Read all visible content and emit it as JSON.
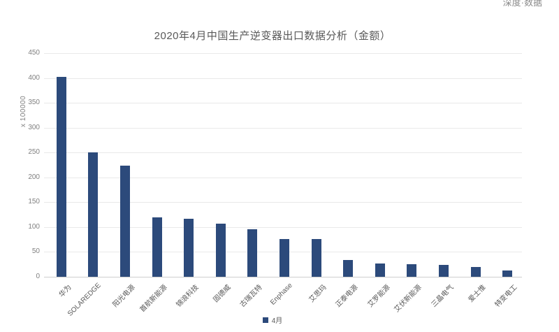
{
  "watermark": {
    "text": "深度·数据"
  },
  "colors": {
    "bar": "#2C4A7B",
    "gridline": "#E9E9E9",
    "axis_line": "#CFCFCF",
    "title_text": "#595959",
    "tick_text": "#7F7F7F",
    "category_text": "#595959",
    "watermark_text": "#8A8A8A",
    "background": "#FFFFFF"
  },
  "chart_data": {
    "type": "bar",
    "title": "2020年4月中国生产逆变器出口数据分析（金额）",
    "xlabel": "",
    "ylabel": "",
    "y_display_unit": "x 100000",
    "ylim": [
      0,
      450
    ],
    "y_tick_interval": 50,
    "grid": true,
    "legend_position": "bottom",
    "categories": [
      "华为",
      "SOLAREDGE",
      "阳光电源",
      "首航新能源",
      "锦浪科技",
      "固德威",
      "古瑞瓦特",
      "Enphase",
      "艾思玛",
      "正泰电源",
      "艾罗能源",
      "艾伏新能源",
      "三晶电气",
      "爱士惟",
      "特变电工"
    ],
    "series": [
      {
        "name": "4月",
        "values": [
          402,
          250,
          223,
          120,
          117,
          107,
          96,
          76,
          76,
          34,
          27,
          26,
          24,
          20,
          12
        ]
      }
    ]
  }
}
